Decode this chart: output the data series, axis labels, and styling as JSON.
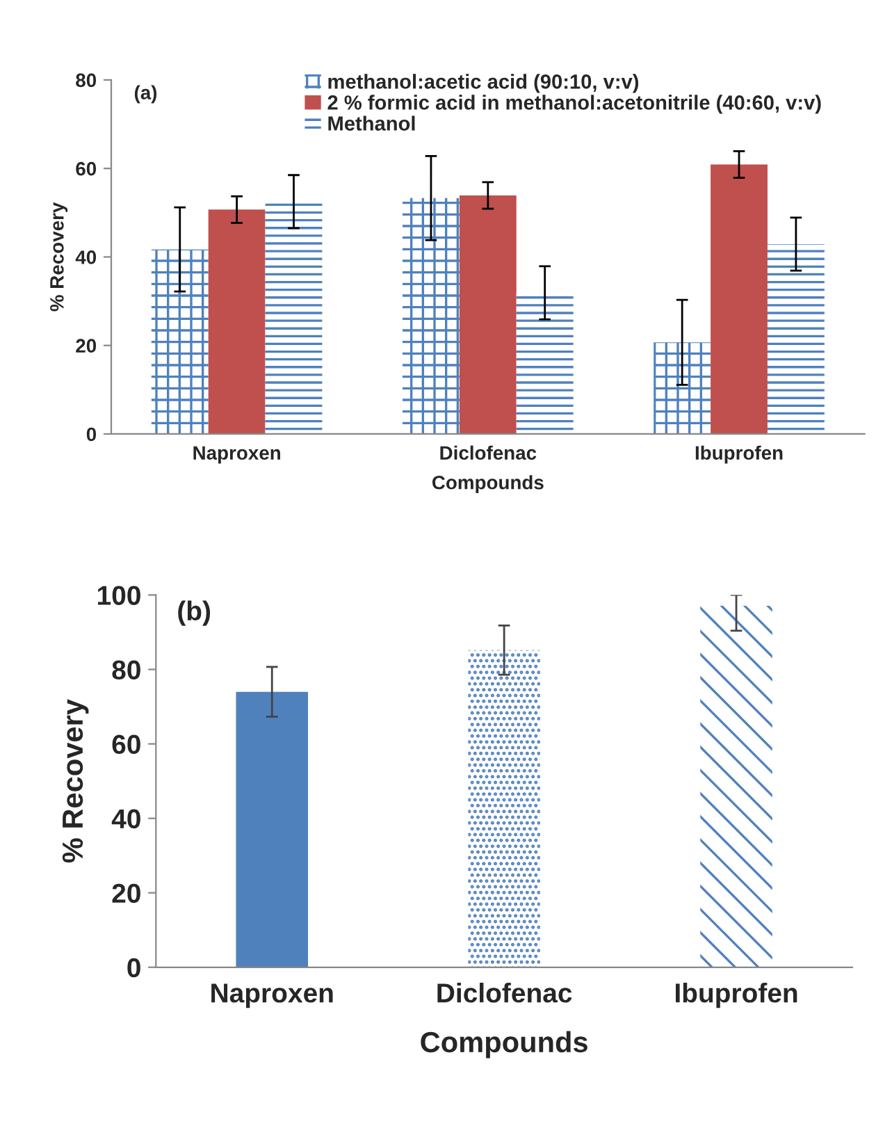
{
  "chart_data": [
    {
      "type": "bar",
      "xlabel": "Compounds",
      "ylabel": "% Recovery",
      "categories": [
        "Naproxen",
        "Diclofenac",
        "Ibuprofen"
      ],
      "series": [
        {
          "name": "methanol:acetic acid (90:10, v:v)",
          "color": "#4f81bd",
          "values": [
            41.7,
            53.3,
            20.7
          ],
          "errors": [
            9.5,
            9.5,
            9.6
          ]
        },
        {
          "name": "2 % formic acid in methanol:acetonitrile (40:60, v:v)",
          "color": "#c0504d",
          "values": [
            50.7,
            53.9,
            60.9
          ],
          "errors": [
            3,
            3,
            3
          ]
        },
        {
          "name": "Methanol",
          "color": "#4f81bd",
          "values": [
            52.5,
            31.9,
            42.9
          ],
          "errors": [
            6,
            6,
            6
          ]
        }
      ],
      "ylim": [
        0,
        80
      ],
      "yticks": [
        0,
        20,
        40,
        60,
        80
      ],
      "legend": "top",
      "annotations": [
        "(a)"
      ]
    },
    {
      "type": "bar",
      "xlabel": "Compounds",
      "ylabel": "% Recovery",
      "categories": [
        "Naproxen",
        "Diclofenac",
        "Ibuprofen"
      ],
      "values": [
        74.0,
        85.2,
        97.1
      ],
      "colors": [
        "#4f81bd",
        "#4f81bd",
        "#4f81bd"
      ],
      "errors": [
        6.7,
        6.6,
        [
          90.4,
          100
        ]
      ],
      "ylim": [
        0,
        100
      ],
      "yticks": [
        0,
        20,
        40,
        60,
        80,
        100
      ],
      "annotations": [
        "(b)"
      ]
    }
  ]
}
